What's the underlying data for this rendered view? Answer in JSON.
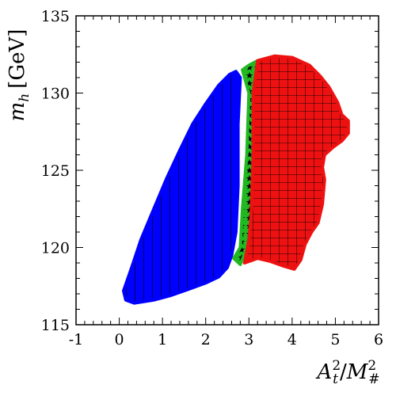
{
  "chart_data": {
    "type": "scatter",
    "title": "",
    "xlabel": {
      "base1": "A",
      "sub1": "t",
      "sup1": "2",
      "slash": "/",
      "base2": "M",
      "sub2": "#",
      "sup2": "2"
    },
    "ylabel": {
      "base": "m",
      "sub": "h",
      "unit": "[GeV]"
    },
    "xlim": [
      -1,
      6
    ],
    "ylim": [
      115,
      135
    ],
    "xticks": [
      "-1",
      "0",
      "1",
      "2",
      "3",
      "4",
      "5",
      "6"
    ],
    "yticks": [
      "115",
      "120",
      "125",
      "130",
      "135"
    ],
    "minor_x_step": 0.2,
    "minor_y_step": 1,
    "grid": false,
    "series": [
      {
        "color": "#0000ff",
        "hatch": "vertical-lines",
        "region": [
          [
            0.1,
            117.2
          ],
          [
            0.15,
            116.6
          ],
          [
            0.35,
            116.4
          ],
          [
            0.8,
            116.6
          ],
          [
            1.2,
            116.9
          ],
          [
            1.6,
            117.3
          ],
          [
            2.0,
            117.7
          ],
          [
            2.3,
            118.1
          ],
          [
            2.5,
            118.7
          ],
          [
            2.6,
            119.5
          ],
          [
            2.7,
            121.0
          ],
          [
            2.75,
            124.0
          ],
          [
            2.75,
            128.0
          ],
          [
            2.8,
            131.0
          ],
          [
            2.7,
            131.4
          ],
          [
            2.55,
            131.2
          ],
          [
            2.3,
            130.5
          ],
          [
            2.0,
            129.3
          ],
          [
            1.7,
            128.0
          ],
          [
            1.4,
            126.3
          ],
          [
            1.1,
            124.5
          ],
          [
            0.8,
            122.5
          ],
          [
            0.5,
            120.5
          ],
          [
            0.3,
            118.8
          ]
        ]
      },
      {
        "color": "#22b822",
        "hatch": "stars",
        "region": [
          [
            2.65,
            119.3
          ],
          [
            2.8,
            120.0
          ],
          [
            2.85,
            122.5
          ],
          [
            2.95,
            126.0
          ],
          [
            3.0,
            130.0
          ],
          [
            2.85,
            131.5
          ],
          [
            3.0,
            131.8
          ],
          [
            3.2,
            132.1
          ],
          [
            3.15,
            130.0
          ],
          [
            3.1,
            128.0
          ],
          [
            3.1,
            126.0
          ],
          [
            3.1,
            124.0
          ],
          [
            3.05,
            122.0
          ],
          [
            3.0,
            120.5
          ],
          [
            2.9,
            119.6
          ],
          [
            2.8,
            118.9
          ]
        ]
      },
      {
        "color": "#ee1111",
        "hatch": "square-grid",
        "region": [
          [
            2.9,
            119.0
          ],
          [
            3.2,
            119.3
          ],
          [
            3.5,
            119.1
          ],
          [
            3.8,
            118.8
          ],
          [
            4.05,
            118.6
          ],
          [
            4.2,
            119.2
          ],
          [
            4.3,
            120.2
          ],
          [
            4.45,
            121.0
          ],
          [
            4.6,
            121.6
          ],
          [
            4.7,
            122.8
          ],
          [
            4.75,
            124.4
          ],
          [
            4.7,
            125.2
          ],
          [
            4.75,
            126.0
          ],
          [
            4.95,
            126.5
          ],
          [
            5.15,
            126.9
          ],
          [
            5.3,
            127.4
          ],
          [
            5.3,
            128.2
          ],
          [
            5.15,
            128.6
          ],
          [
            5.05,
            129.4
          ],
          [
            4.85,
            130.4
          ],
          [
            4.65,
            131.1
          ],
          [
            4.4,
            131.8
          ],
          [
            4.0,
            132.3
          ],
          [
            3.6,
            132.4
          ],
          [
            3.2,
            132.1
          ],
          [
            3.1,
            130.0
          ],
          [
            3.1,
            126.0
          ],
          [
            3.05,
            122.0
          ],
          [
            3.0,
            120.5
          ]
        ]
      }
    ]
  }
}
